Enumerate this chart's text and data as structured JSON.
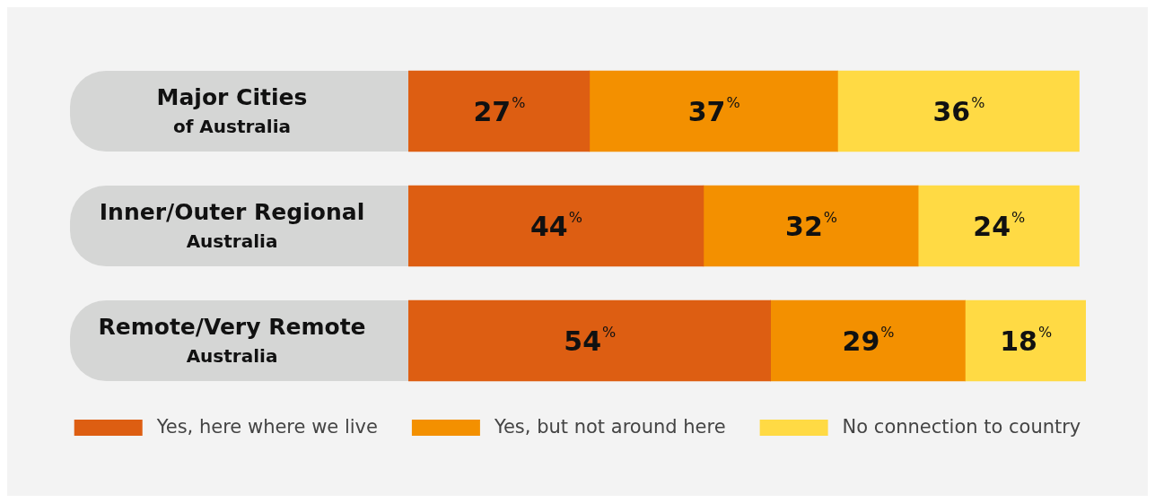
{
  "chart_data": {
    "type": "bar",
    "orientation": "horizontal",
    "stacked": true,
    "categories": [
      "Major Cities\nof Australia",
      "Inner/Outer Regional\nAustralia",
      "Remote/Very Remote\nAustralia"
    ],
    "series": [
      {
        "name": "Yes, here where we live",
        "color": "#dd5e12",
        "values": [
          27,
          44,
          54
        ],
        "value_labels": [
          "27%",
          "44%",
          "54%"
        ]
      },
      {
        "name": "Yes, but not around here",
        "color": "#f39000",
        "values": [
          37,
          32,
          29
        ],
        "value_labels": [
          "37%",
          "32%",
          "29%"
        ]
      },
      {
        "name": "No connection to country",
        "color": "#ffda44",
        "values": [
          36,
          24,
          18
        ],
        "value_labels": [
          "36%",
          "24%",
          "18%"
        ]
      }
    ],
    "legend": "bottom"
  }
}
